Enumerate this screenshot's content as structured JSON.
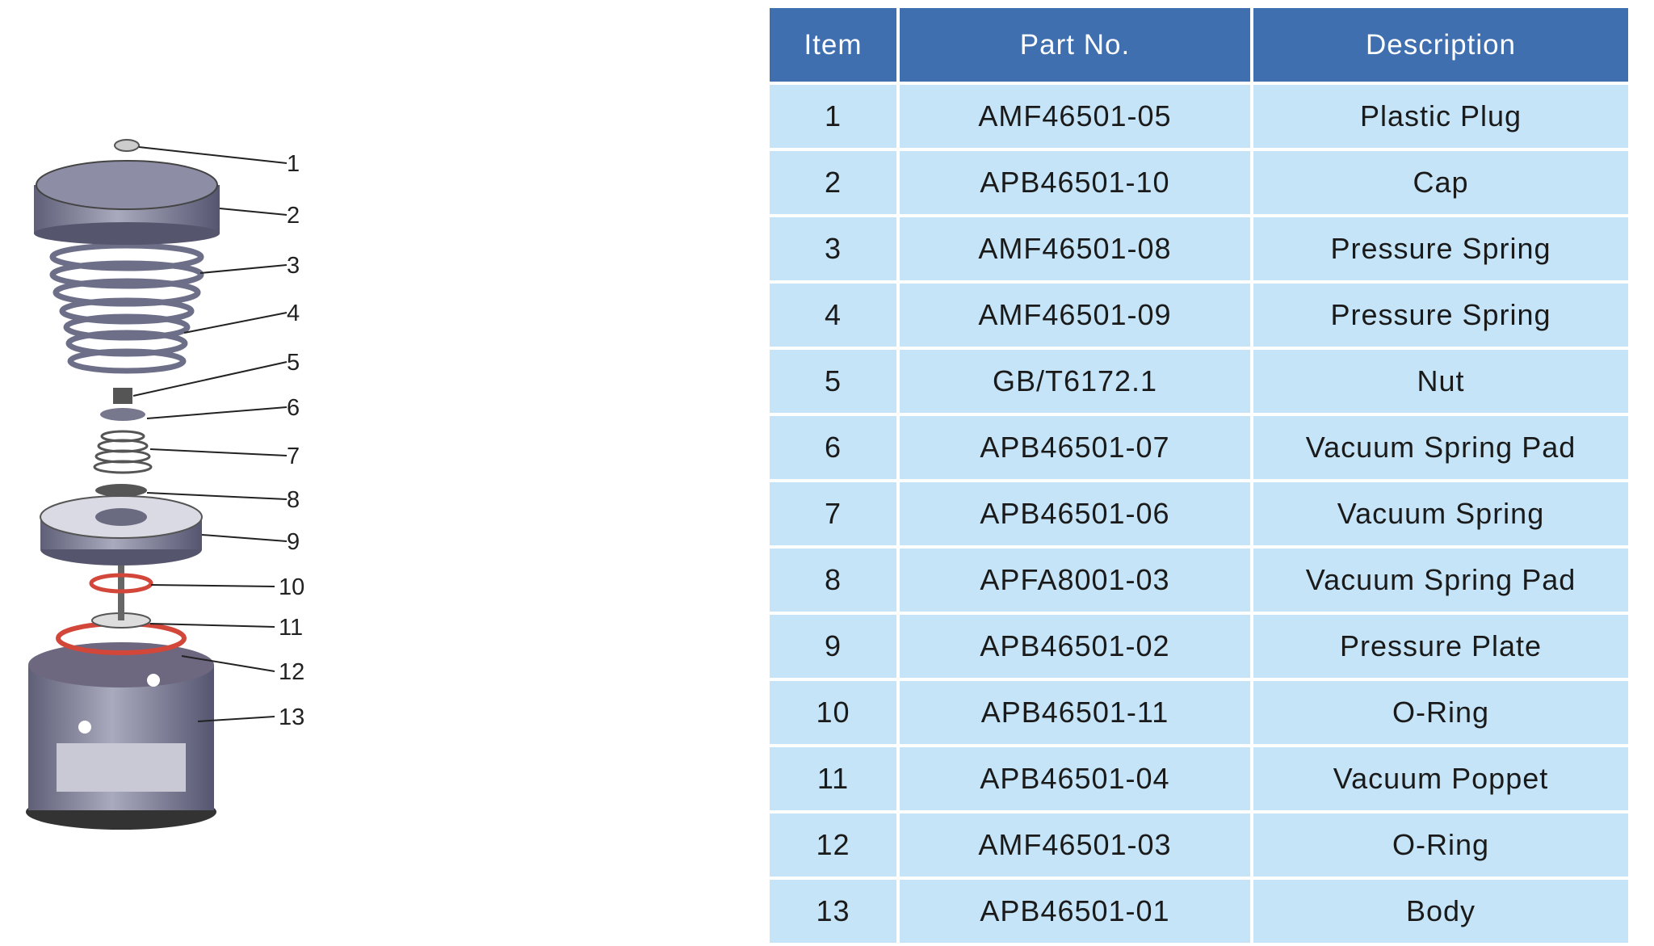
{
  "diagram": {
    "callouts": [
      "1",
      "2",
      "3",
      "4",
      "5",
      "6",
      "7",
      "8",
      "9",
      "10",
      "11",
      "12",
      "13"
    ]
  },
  "table": {
    "headers": {
      "item": "Item",
      "part_no": "Part No.",
      "description": "Description"
    },
    "rows": [
      {
        "item": "1",
        "part_no": "AMF46501-05",
        "description": "Plastic Plug"
      },
      {
        "item": "2",
        "part_no": "APB46501-10",
        "description": "Cap"
      },
      {
        "item": "3",
        "part_no": "AMF46501-08",
        "description": "Pressure Spring"
      },
      {
        "item": "4",
        "part_no": "AMF46501-09",
        "description": "Pressure Spring"
      },
      {
        "item": "5",
        "part_no": "GB/T6172.1",
        "description": "Nut"
      },
      {
        "item": "6",
        "part_no": "APB46501-07",
        "description": "Vacuum Spring Pad"
      },
      {
        "item": "7",
        "part_no": "APB46501-06",
        "description": "Vacuum Spring"
      },
      {
        "item": "8",
        "part_no": "APFA8001-03",
        "description": "Vacuum Spring Pad"
      },
      {
        "item": "9",
        "part_no": "APB46501-02",
        "description": "Pressure Plate"
      },
      {
        "item": "10",
        "part_no": "APB46501-11",
        "description": "O-Ring"
      },
      {
        "item": "11",
        "part_no": "APB46501-04",
        "description": "Vacuum Poppet"
      },
      {
        "item": "12",
        "part_no": "AMF46501-03",
        "description": "O-Ring"
      },
      {
        "item": "13",
        "part_no": "APB46501-01",
        "description": "Body"
      }
    ]
  },
  "colors": {
    "header_bg": "#3f6fae",
    "row_bg": "#c5e4f7",
    "oring": "#d2473a"
  }
}
